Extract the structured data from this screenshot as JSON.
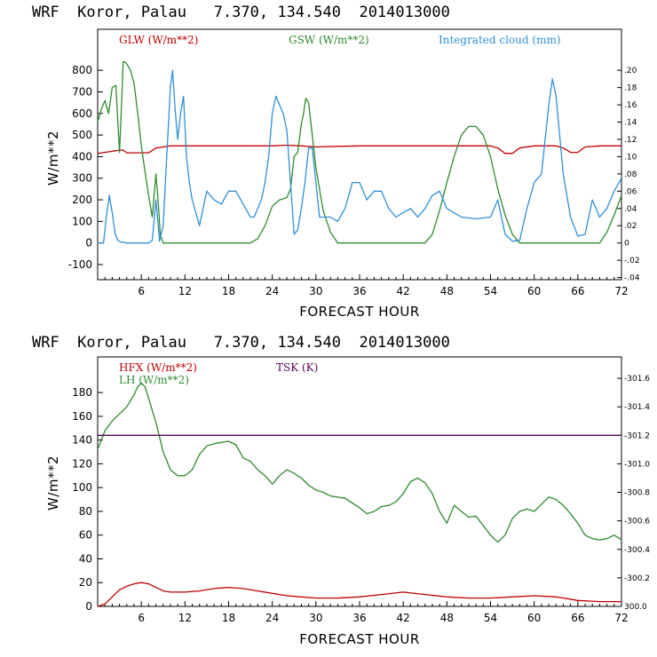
{
  "chart_data": [
    {
      "type": "line",
      "title": "WRF  Koror, Palau   7.370, 134.540  2014013000",
      "xlabel": "FORECAST HOUR",
      "ylabel": "W/m**2",
      "xlim": [
        0,
        72
      ],
      "ylim": [
        -170,
        990
      ],
      "y2lim": [
        -0.0425,
        0.2475
      ],
      "x_ticks": [
        6,
        12,
        18,
        24,
        30,
        36,
        42,
        48,
        54,
        60,
        66,
        72
      ],
      "x_tick_labels": [
        "6",
        "12",
        "18",
        "24",
        "30",
        "36",
        "42",
        "48",
        "54",
        "60",
        "66",
        "72"
      ],
      "y_ticks": [
        -100,
        0,
        100,
        200,
        300,
        400,
        500,
        600,
        700,
        800
      ],
      "y_tick_labels": [
        "-100",
        "0",
        "100",
        "200",
        "300",
        "400",
        "500",
        "600",
        "700",
        "800"
      ],
      "y2_ticks": [
        -0.04,
        -0.02,
        0,
        0.02,
        0.04,
        0.06,
        0.08,
        0.1,
        0.12,
        0.14,
        0.16,
        0.18,
        0.2
      ],
      "y2_tick_labels": [
        "-.04",
        "-.02",
        "0",
        ".02",
        ".04",
        ".06",
        ".08",
        ".10",
        ".12",
        ".14",
        ".16",
        ".18",
        ".20"
      ],
      "series": [
        {
          "name": "GLW (W/m**2)",
          "color": "#c00000",
          "axis": "left",
          "x": [
            0,
            1,
            2,
            3,
            3.5,
            4,
            5,
            6,
            7,
            8,
            9,
            10,
            11,
            12,
            15,
            18,
            21,
            24,
            26,
            28,
            30,
            33,
            36,
            42,
            48,
            54,
            55,
            56,
            57,
            58,
            60,
            63,
            64,
            65,
            66,
            67,
            69,
            72
          ],
          "values": [
            415,
            420,
            425,
            430,
            430,
            418,
            418,
            418,
            418,
            440,
            445,
            450,
            450,
            450,
            450,
            450,
            450,
            450,
            453,
            450,
            445,
            448,
            450,
            450,
            450,
            450,
            440,
            415,
            415,
            440,
            450,
            450,
            440,
            420,
            420,
            445,
            450,
            450
          ]
        },
        {
          "name": "GSW (W/m**2)",
          "color": "#2e8b2e",
          "axis": "left",
          "x": [
            0,
            0.5,
            1,
            1.5,
            2,
            2.5,
            3,
            3.3,
            3.5,
            3.7,
            4,
            4.5,
            5,
            5.5,
            6,
            6.5,
            7,
            7.5,
            8,
            8.3,
            8.6,
            9,
            12,
            15,
            18,
            21,
            22,
            23,
            24,
            25,
            26,
            26.5,
            27,
            27.5,
            28,
            28.3,
            28.6,
            29,
            29.5,
            30,
            31,
            32,
            33,
            36,
            39,
            42,
            45,
            46,
            47,
            48,
            49,
            50,
            51,
            52,
            53,
            54,
            55,
            56,
            57,
            58,
            60,
            63,
            66,
            69,
            70,
            71,
            72
          ],
          "values": [
            560,
            620,
            660,
            600,
            720,
            730,
            420,
            650,
            840,
            840,
            830,
            800,
            740,
            600,
            450,
            330,
            220,
            120,
            320,
            200,
            40,
            0,
            0,
            0,
            0,
            0,
            20,
            80,
            170,
            200,
            210,
            250,
            400,
            420,
            550,
            600,
            670,
            650,
            500,
            350,
            150,
            50,
            0,
            0,
            0,
            0,
            0,
            40,
            150,
            280,
            400,
            500,
            540,
            540,
            500,
            400,
            250,
            130,
            40,
            0,
            0,
            0,
            0,
            0,
            50,
            130,
            220
          ]
        },
        {
          "name": "Integrated cloud (mm)",
          "color": "#2f8fd8",
          "axis": "right",
          "x": [
            0,
            0.8,
            1.2,
            1.6,
            2,
            2.4,
            2.8,
            3.2,
            3.6,
            4,
            5,
            6,
            7,
            7.5,
            8,
            8.5,
            9,
            9.5,
            10,
            10.3,
            10.6,
            11,
            11.4,
            11.8,
            12.2,
            12.6,
            13,
            14,
            15,
            16,
            17,
            18,
            19,
            20,
            21,
            21.5,
            22,
            22.5,
            23,
            23.5,
            24,
            24.5,
            25,
            25.5,
            26,
            26.5,
            27,
            27.5,
            28,
            28.5,
            29,
            29.5,
            30,
            30.5,
            31,
            32,
            33,
            34,
            35,
            36,
            37,
            38,
            39,
            40,
            41,
            42,
            43,
            44,
            45,
            46,
            47,
            48,
            50,
            52,
            54,
            55,
            56,
            57,
            58,
            59,
            60,
            61,
            62,
            62.5,
            63,
            64,
            65,
            66,
            67,
            68,
            69,
            70,
            71,
            72
          ],
          "values": [
            0,
            0,
            0.03,
            0.055,
            0.035,
            0.01,
            0.003,
            0.001,
            0.001,
            0,
            0,
            0,
            0,
            0.003,
            0.05,
            0.002,
            0.02,
            0.1,
            0.18,
            0.2,
            0.16,
            0.12,
            0.15,
            0.17,
            0.1,
            0.07,
            0.05,
            0.02,
            0.06,
            0.05,
            0.045,
            0.06,
            0.06,
            0.045,
            0.03,
            0.03,
            0.04,
            0.05,
            0.07,
            0.1,
            0.15,
            0.17,
            0.16,
            0.15,
            0.13,
            0.07,
            0.01,
            0.015,
            0.04,
            0.07,
            0.11,
            0.11,
            0.07,
            0.03,
            0.03,
            0.03,
            0.025,
            0.04,
            0.07,
            0.07,
            0.05,
            0.06,
            0.06,
            0.04,
            0.03,
            0.035,
            0.04,
            0.03,
            0.04,
            0.055,
            0.06,
            0.04,
            0.03,
            0.028,
            0.03,
            0.05,
            0.01,
            0.002,
            0.003,
            0.04,
            0.07,
            0.08,
            0.16,
            0.19,
            0.17,
            0.08,
            0.03,
            0.008,
            0.01,
            0.05,
            0.03,
            0.04,
            0.06,
            0.075
          ]
        }
      ]
    },
    {
      "type": "line",
      "title": "WRF  Koror, Palau   7.370, 134.540  2014013000",
      "xlabel": "FORECAST HOUR",
      "ylabel": "W/m**2",
      "xlim": [
        0,
        72
      ],
      "ylim": [
        0,
        210
      ],
      "y2lim": [
        300.0,
        301.75
      ],
      "x_ticks": [
        6,
        12,
        18,
        24,
        30,
        36,
        42,
        48,
        54,
        60,
        66,
        72
      ],
      "x_tick_labels": [
        "6",
        "12",
        "18",
        "24",
        "30",
        "36",
        "42",
        "48",
        "54",
        "60",
        "66",
        "72"
      ],
      "y_ticks": [
        0,
        20,
        40,
        60,
        80,
        100,
        120,
        140,
        160,
        180
      ],
      "y_tick_labels": [
        "0",
        "20",
        "40",
        "60",
        "80",
        "100",
        "120",
        "140",
        "160",
        "180"
      ],
      "y2_ticks": [
        300.0,
        300.2,
        300.4,
        300.6,
        300.8,
        301.0,
        301.2,
        301.4,
        301.6
      ],
      "y2_tick_labels": [
        "300.0",
        "-300.2",
        "-300.4",
        "-300.6",
        "-300.8",
        "-301.0",
        "-301.2",
        "-301.4",
        "-301.6"
      ],
      "series": [
        {
          "name": "HFX (W/m**2)",
          "color": "#c00000",
          "axis": "left",
          "x": [
            0,
            1,
            2,
            3,
            4,
            5,
            6,
            7,
            8,
            9,
            10,
            12,
            14,
            16,
            18,
            20,
            22,
            24,
            26,
            28,
            30,
            33,
            36,
            39,
            42,
            45,
            48,
            51,
            54,
            57,
            60,
            63,
            66,
            69,
            72
          ],
          "values": [
            0,
            2,
            8,
            14,
            17,
            19,
            20,
            19,
            16,
            13,
            12,
            12,
            13,
            15,
            16,
            15,
            13,
            11,
            9,
            8,
            7,
            7,
            8,
            10,
            12,
            10,
            8,
            7,
            7,
            8,
            9,
            8,
            5,
            4,
            4
          ]
        },
        {
          "name": "LH  (W/m**2)",
          "color": "#2e8b2e",
          "axis": "left",
          "x": [
            0,
            0.5,
            1,
            2,
            3,
            4,
            5,
            5.5,
            6,
            6.5,
            7,
            8,
            9,
            10,
            11,
            12,
            13,
            14,
            15,
            16,
            17,
            18,
            19,
            20,
            21,
            22,
            23,
            24,
            25,
            26,
            27,
            28,
            29,
            30,
            31,
            32,
            33,
            34,
            35,
            36,
            37,
            38,
            39,
            40,
            41,
            42,
            43,
            44,
            45,
            46,
            47,
            48,
            49,
            50,
            51,
            52,
            53,
            54,
            55,
            56,
            57,
            58,
            59,
            60,
            61,
            62,
            63,
            64,
            65,
            66,
            67,
            68,
            69,
            70,
            71,
            72
          ],
          "values": [
            132,
            140,
            148,
            156,
            162,
            168,
            178,
            185,
            188,
            185,
            175,
            155,
            130,
            115,
            110,
            110,
            115,
            128,
            135,
            137,
            138,
            139,
            136,
            125,
            122,
            115,
            110,
            103,
            110,
            115,
            112,
            108,
            102,
            98,
            96,
            93,
            92,
            91,
            87,
            83,
            78,
            80,
            84,
            85,
            88,
            95,
            105,
            108,
            104,
            95,
            80,
            70,
            85,
            80,
            75,
            76,
            68,
            60,
            54,
            60,
            74,
            80,
            82,
            80,
            86,
            92,
            90,
            85,
            78,
            70,
            60,
            57,
            56,
            57,
            60,
            56
          ]
        },
        {
          "name": "TSK (K)",
          "color": "#5a005a",
          "axis": "right",
          "x": [
            0,
            72
          ],
          "values": [
            301.2,
            301.2
          ]
        }
      ]
    }
  ],
  "panels": [
    {
      "title": "WRF  Koror, Palau   7.370, 134.540  2014013000",
      "ylabel": "W/m**2",
      "xlabel": "FORECAST HOUR",
      "legend": [
        {
          "label": "GLW (W/m**2)",
          "color": "#c00000"
        },
        {
          "label": "GSW (W/m**2)",
          "color": "#2e8b2e"
        },
        {
          "label": "Integrated cloud (mm)",
          "color": "#2f8fd8"
        }
      ]
    },
    {
      "title": "WRF  Koror, Palau   7.370, 134.540  2014013000",
      "ylabel": "W/m**2",
      "xlabel": "FORECAST HOUR",
      "legend": [
        {
          "label": "HFX (W/m**2)",
          "color": "#c00000"
        },
        {
          "label": "LH  (W/m**2)",
          "color": "#2e8b2e"
        },
        {
          "label": "TSK (K)",
          "color": "#5a005a"
        }
      ]
    }
  ]
}
